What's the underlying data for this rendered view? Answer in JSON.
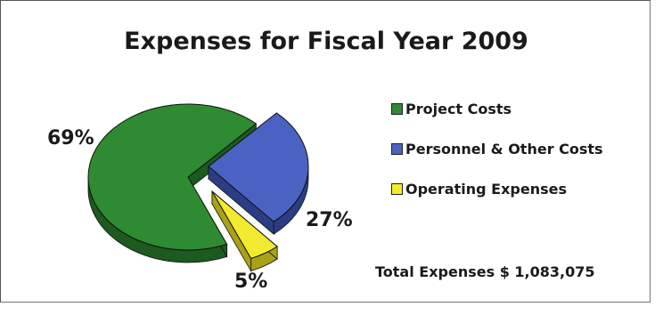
{
  "chart_data": {
    "type": "pie",
    "title": "Expenses for Fiscal Year 2009",
    "series": [
      {
        "name": "Project Costs",
        "value": 69,
        "label": "69%",
        "color": "#2e8b32",
        "dark": "#1c5a1f"
      },
      {
        "name": "Personnel & Other Costs",
        "value": 27,
        "label": "27%",
        "color": "#4a63c2",
        "dark": "#2c3d85"
      },
      {
        "name": "Operating Expenses",
        "value": 5,
        "label": "5%",
        "color": "#f2ea30",
        "dark": "#a9a218"
      }
    ],
    "legend_position": "right",
    "annotation": "Total Expenses $ 1,083,075"
  }
}
